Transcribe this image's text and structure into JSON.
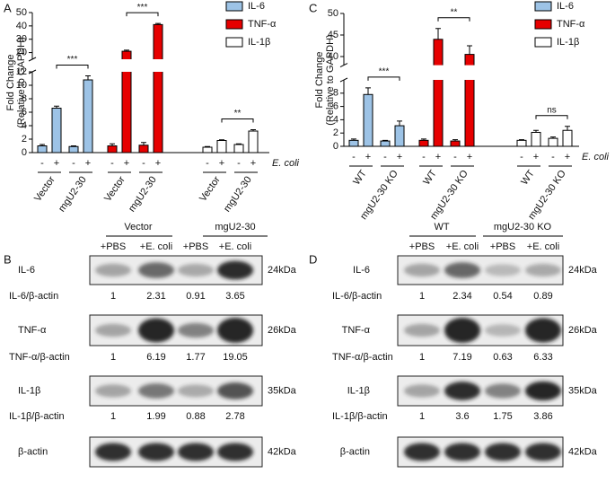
{
  "panels": [
    "A",
    "B",
    "C",
    "D"
  ],
  "chart_data": [
    {
      "type": "bar",
      "y_label": [
        "Fold Change",
        "(Relative to GAPDH)"
      ],
      "categories": [
        "-",
        "+",
        "-",
        "+"
      ],
      "group_labels": [
        "Vector",
        "mgU2-30"
      ],
      "condition_label": "E. coli",
      "y_segments": [
        {
          "ylim": [
            0,
            12
          ],
          "yticks": [
            0,
            2,
            4,
            6,
            8,
            10,
            12
          ]
        },
        {
          "ylim": [
            15,
            50
          ],
          "yticks": [
            20,
            30,
            40,
            50
          ]
        }
      ],
      "series": [
        {
          "name": "IL-6",
          "color": "#9dc3e6",
          "values": [
            1.0,
            6.6,
            0.9,
            10.8
          ],
          "errors": [
            0.2,
            0.3,
            0.1,
            0.6
          ]
        },
        {
          "name": "TNF-α",
          "color": "#e60000",
          "values": [
            1.0,
            21,
            1.1,
            41
          ],
          "errors": [
            0.3,
            0.8,
            0.4,
            0.8
          ]
        },
        {
          "name": "IL-1β",
          "color": "#ffffff",
          "values": [
            0.8,
            1.8,
            1.2,
            3.2
          ],
          "errors": [
            0.1,
            0.1,
            0.1,
            0.2
          ]
        }
      ],
      "significance": [
        "***",
        "***",
        "**"
      ]
    },
    {
      "type": "bar",
      "y_label": [
        "Fold Change",
        "(Relative to GAPDH)"
      ],
      "categories": [
        "-",
        "+",
        "-",
        "+"
      ],
      "group_labels": [
        "WT",
        "mgU2-30 KO"
      ],
      "condition_label": "E. coli",
      "y_segments": [
        {
          "ylim": [
            0,
            10
          ],
          "yticks": [
            0,
            2,
            4,
            6,
            8
          ]
        },
        {
          "ylim": [
            38,
            50
          ],
          "yticks": [
            40,
            45,
            50
          ]
        }
      ],
      "series": [
        {
          "name": "IL-6",
          "color": "#9dc3e6",
          "values": [
            0.9,
            7.8,
            0.8,
            3.1
          ],
          "errors": [
            0.2,
            1.0,
            0.1,
            0.7
          ]
        },
        {
          "name": "TNF-α",
          "color": "#e60000",
          "values": [
            0.9,
            44,
            0.8,
            40.5
          ],
          "errors": [
            0.2,
            2.5,
            0.2,
            2.0
          ]
        },
        {
          "name": "IL-1β",
          "color": "#ffffff",
          "values": [
            0.9,
            2.1,
            1.2,
            2.4
          ],
          "errors": [
            0.1,
            0.3,
            0.2,
            0.6
          ]
        }
      ],
      "significance": [
        "***",
        "**",
        "ns"
      ]
    }
  ],
  "blots": [
    {
      "groups": [
        "Vector",
        "mgU2-30"
      ],
      "lanes": [
        "+PBS",
        "+E. coli",
        "+PBS",
        "+E. coli"
      ],
      "rows": [
        {
          "protein": "IL-6",
          "size": "24kDa",
          "ratio_label": "IL-6/β-actin",
          "ratios": [
            1,
            2.31,
            0.91,
            3.65
          ]
        },
        {
          "protein": "TNF-α",
          "size": "26kDa",
          "ratio_label": "TNF-α/β-actin",
          "ratios": [
            1,
            6.19,
            1.77,
            19.05
          ]
        },
        {
          "protein": "IL-1β",
          "size": "35kDa",
          "ratio_label": "IL-1β/β-actin",
          "ratios": [
            1,
            1.99,
            0.88,
            2.78
          ]
        },
        {
          "protein": "β-actin",
          "size": "42kDa"
        }
      ]
    },
    {
      "groups": [
        "WT",
        "mgU2-30 KO"
      ],
      "lanes": [
        "+PBS",
        "+E. coli",
        "+PBS",
        "+E. coli"
      ],
      "rows": [
        {
          "protein": "IL-6",
          "size": "24kDa",
          "ratio_label": "IL-6/β-actin",
          "ratios": [
            1,
            2.34,
            0.54,
            0.89
          ]
        },
        {
          "protein": "TNF-α",
          "size": "26kDa",
          "ratio_label": "TNF-α/β-actin",
          "ratios": [
            1,
            7.19,
            0.63,
            6.33
          ]
        },
        {
          "protein": "IL-1β",
          "size": "35kDa",
          "ratio_label": "IL-1β/β-actin",
          "ratios": [
            1,
            3.6,
            1.75,
            3.86
          ]
        },
        {
          "protein": "β-actin",
          "size": "42kDa"
        }
      ]
    }
  ]
}
